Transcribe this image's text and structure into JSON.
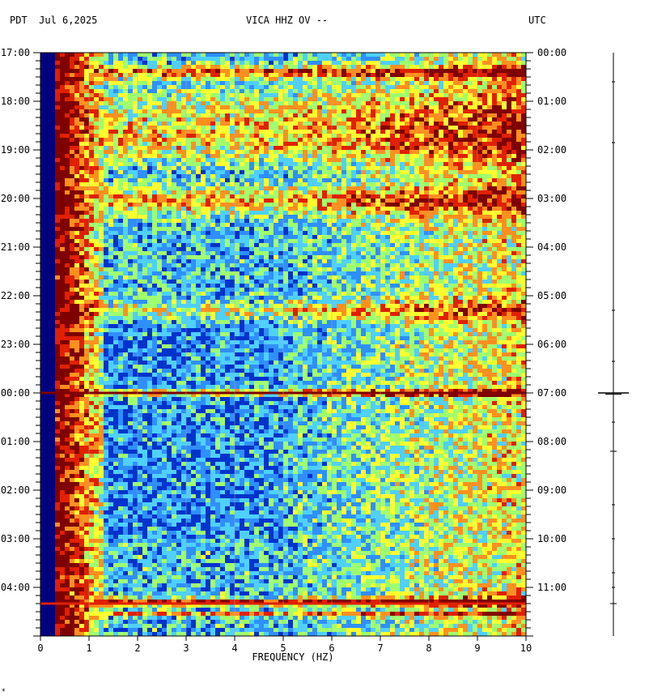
{
  "header": {
    "left_tz": "PDT",
    "date": "Jul 6,2025",
    "station": "VICA HHZ OV --",
    "right_tz": "UTC"
  },
  "chart_data": {
    "type": "heatmap",
    "title": "VICA HHZ OV --",
    "xlabel": "FREQUENCY (HZ)",
    "xlim": [
      0,
      10
    ],
    "x_ticks": [
      "0",
      "1",
      "2",
      "3",
      "4",
      "5",
      "6",
      "7",
      "8",
      "9",
      "10"
    ],
    "left_time_labels": [
      "17:00",
      "18:00",
      "19:00",
      "20:00",
      "21:00",
      "22:00",
      "23:00",
      "00:00",
      "01:00",
      "02:00",
      "03:00",
      "04:00"
    ],
    "right_time_labels": [
      "00:00",
      "01:00",
      "02:00",
      "03:00",
      "04:00",
      "05:00",
      "06:00",
      "07:00",
      "08:00",
      "09:00",
      "10:00",
      "11:00"
    ],
    "hours_shown": 12,
    "colormap": [
      "#00007f",
      "#0033cc",
      "#2f8fff",
      "#4fd0ff",
      "#9fff6f",
      "#ffff30",
      "#ff9020",
      "#e02000",
      "#7f0000"
    ],
    "grid": true,
    "notable_events": [
      {
        "time_utc": "07:00",
        "description": "strong broadband event"
      },
      {
        "time_utc": "11:20",
        "description": "broadband event"
      }
    ]
  }
}
